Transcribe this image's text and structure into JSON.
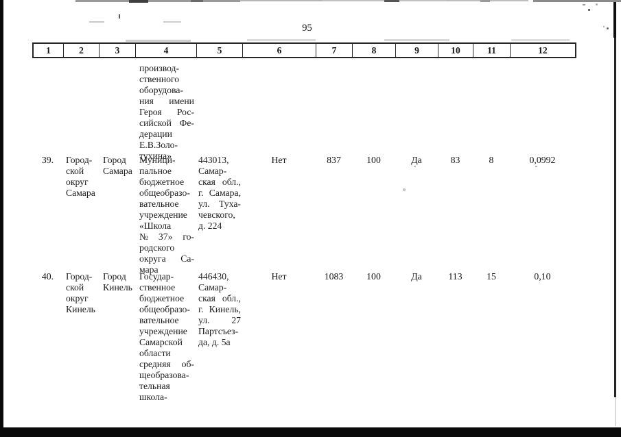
{
  "page_number": "95",
  "table": {
    "header_labels": [
      "1",
      "2",
      "3",
      "4",
      "5",
      "6",
      "7",
      "8",
      "9",
      "10",
      "11",
      "12"
    ],
    "carryover": {
      "name_lines": [
        "производ-",
        "ственного",
        "оборудова-",
        [
          "ния",
          "имени"
        ],
        [
          "Героя",
          "Рос-"
        ],
        [
          "сийской",
          "Фе-"
        ],
        "дерации",
        "Е.В.Золо-",
        "тухина»"
      ]
    },
    "rows": [
      {
        "num": "39.",
        "district_lines": [
          "Город-",
          "ской",
          "округ",
          "Самара"
        ],
        "city_lines": [
          "Город",
          "Самара"
        ],
        "name_lines": [
          "Муници-",
          "пальное",
          "бюджетное",
          "общеобразо-",
          "вательное",
          "учреждение",
          "«Школа",
          [
            "№",
            "37»",
            "го-"
          ],
          "родского",
          [
            "округа",
            "Са-"
          ],
          "мара"
        ],
        "address_lines": [
          "443013,",
          "Самар-",
          [
            "ская",
            "обл.,"
          ],
          [
            "г.",
            "Самара,"
          ],
          [
            "ул.",
            "Туха-"
          ],
          "чевского,",
          "д. 224"
        ],
        "col6": "Нет",
        "col7": "837",
        "col8": "100",
        "col9": "Да",
        "col10": "83",
        "col11": "8",
        "col12": "0,0992"
      },
      {
        "num": "40.",
        "district_lines": [
          "Город-",
          "ской",
          "округ",
          "Кинель"
        ],
        "city_lines": [
          "Город",
          "Кинель"
        ],
        "name_lines": [
          "Государ-",
          "ственное",
          "бюджетное",
          "общеобразо-",
          "вательное",
          "учреждение",
          "Самарской",
          "области",
          [
            "средняя",
            "об-"
          ],
          "щеобразова-",
          "тельная",
          "школа-"
        ],
        "address_lines": [
          "446430,",
          "Самар-",
          [
            "ская",
            "обл.,"
          ],
          [
            "г.",
            "Кинель,"
          ],
          [
            "ул.",
            "27"
          ],
          "Партсъез-",
          "да, д. 5а"
        ],
        "col6": "Нет",
        "col7": "1083",
        "col8": "100",
        "col9": "Да",
        "col10": "113",
        "col11": "15",
        "col12": "0,10"
      }
    ]
  }
}
